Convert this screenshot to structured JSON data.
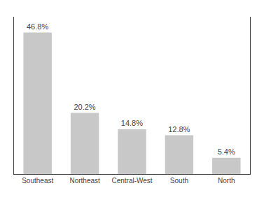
{
  "chart_data": {
    "type": "bar",
    "categories": [
      "Southeast",
      "Northeast",
      "Central-West",
      "South",
      "North"
    ],
    "values": [
      46.8,
      20.2,
      14.8,
      12.8,
      5.4
    ],
    "value_labels": [
      "46.8%",
      "20.2%",
      "14.8%",
      "12.8%",
      "5.4%"
    ],
    "data_labels": true,
    "color": "#c8c8c8",
    "ylim": [
      0,
      52
    ],
    "grid": false,
    "tick_labels": "x"
  }
}
